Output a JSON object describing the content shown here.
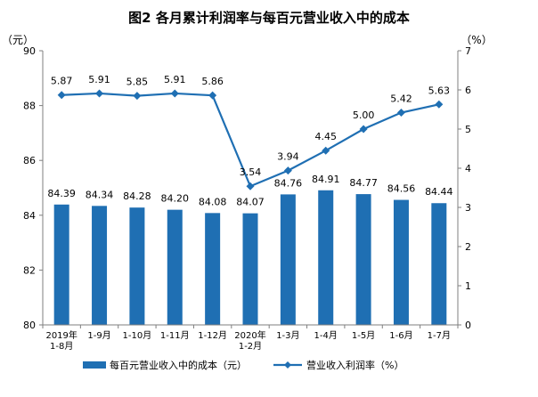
{
  "chart_data": {
    "type": "bar+line",
    "title": "图2 各月累计利润率与每百元营业收入中的成本",
    "left_axis_unit": "（元）",
    "right_axis_unit": "（%）",
    "categories": [
      [
        "2019年",
        "1-8月"
      ],
      [
        "1-9月"
      ],
      [
        "1-10月"
      ],
      [
        "1-11月"
      ],
      [
        "1-12月"
      ],
      [
        "2020年",
        "1-2月"
      ],
      [
        "1-3月"
      ],
      [
        "1-4月"
      ],
      [
        "1-5月"
      ],
      [
        "1-6月"
      ],
      [
        "1-7月"
      ]
    ],
    "series": [
      {
        "name": "每百元营业收入中的成本（元）",
        "type": "bar",
        "axis": "left",
        "color": "#1f6fb3",
        "values": [
          84.39,
          84.34,
          84.28,
          84.2,
          84.08,
          84.07,
          84.76,
          84.91,
          84.77,
          84.56,
          84.44
        ],
        "labels": [
          "84.39",
          "84.34",
          "84.28",
          "84.20",
          "84.08",
          "84.07",
          "84.76",
          "84.91",
          "84.77",
          "84.56",
          "84.44"
        ]
      },
      {
        "name": "营业收入利润率（%）",
        "type": "line",
        "axis": "right",
        "color": "#1f6fb3",
        "values": [
          5.87,
          5.91,
          5.85,
          5.91,
          5.86,
          3.54,
          3.94,
          4.45,
          5.0,
          5.42,
          5.63
        ],
        "labels": [
          "5.87",
          "5.91",
          "5.85",
          "5.91",
          "5.86",
          "3.54",
          "3.94",
          "4.45",
          "5.00",
          "5.42",
          "5.63"
        ]
      }
    ],
    "left_axis": {
      "min": 80,
      "max": 90,
      "ticks": [
        80,
        82,
        84,
        86,
        88,
        90
      ],
      "tick_labels": [
        "80",
        "82",
        "84",
        "86",
        "88",
        "90"
      ]
    },
    "right_axis": {
      "min": 0,
      "max": 7,
      "ticks": [
        0,
        1,
        2,
        3,
        4,
        5,
        6,
        7
      ],
      "tick_labels": [
        "0",
        "1",
        "2",
        "3",
        "4",
        "5",
        "6",
        "7"
      ]
    },
    "legend_position": "bottom",
    "grid": false
  }
}
